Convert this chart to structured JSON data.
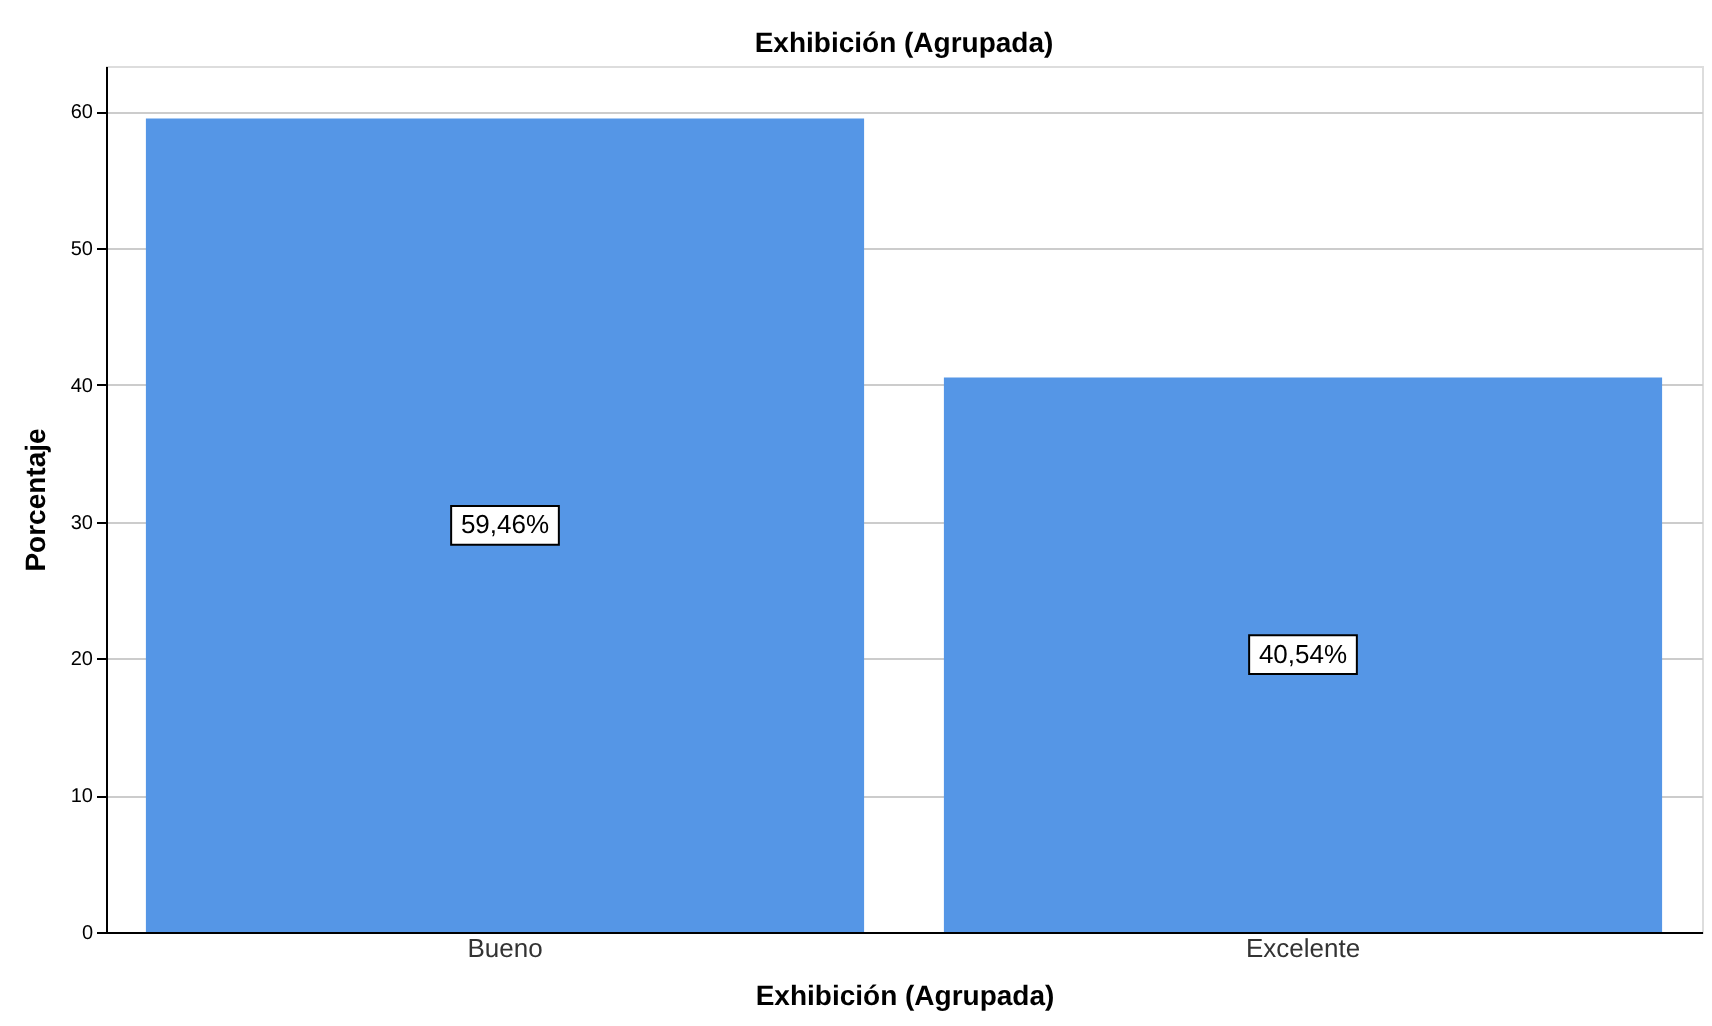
{
  "chart_data": {
    "type": "bar",
    "title": "Exhibición (Agrupada)",
    "xlabel": "Exhibición (Agrupada)",
    "ylabel": "Porcentaje",
    "categories": [
      "Bueno",
      "Excelente"
    ],
    "values": [
      59.46,
      40.54
    ],
    "value_labels": [
      "59,46%",
      "40,54%"
    ],
    "color": "#5596e6",
    "ylim": [
      0,
      63.3
    ],
    "yticks": [
      0,
      10,
      20,
      30,
      40,
      50,
      60
    ],
    "grid": "y"
  }
}
